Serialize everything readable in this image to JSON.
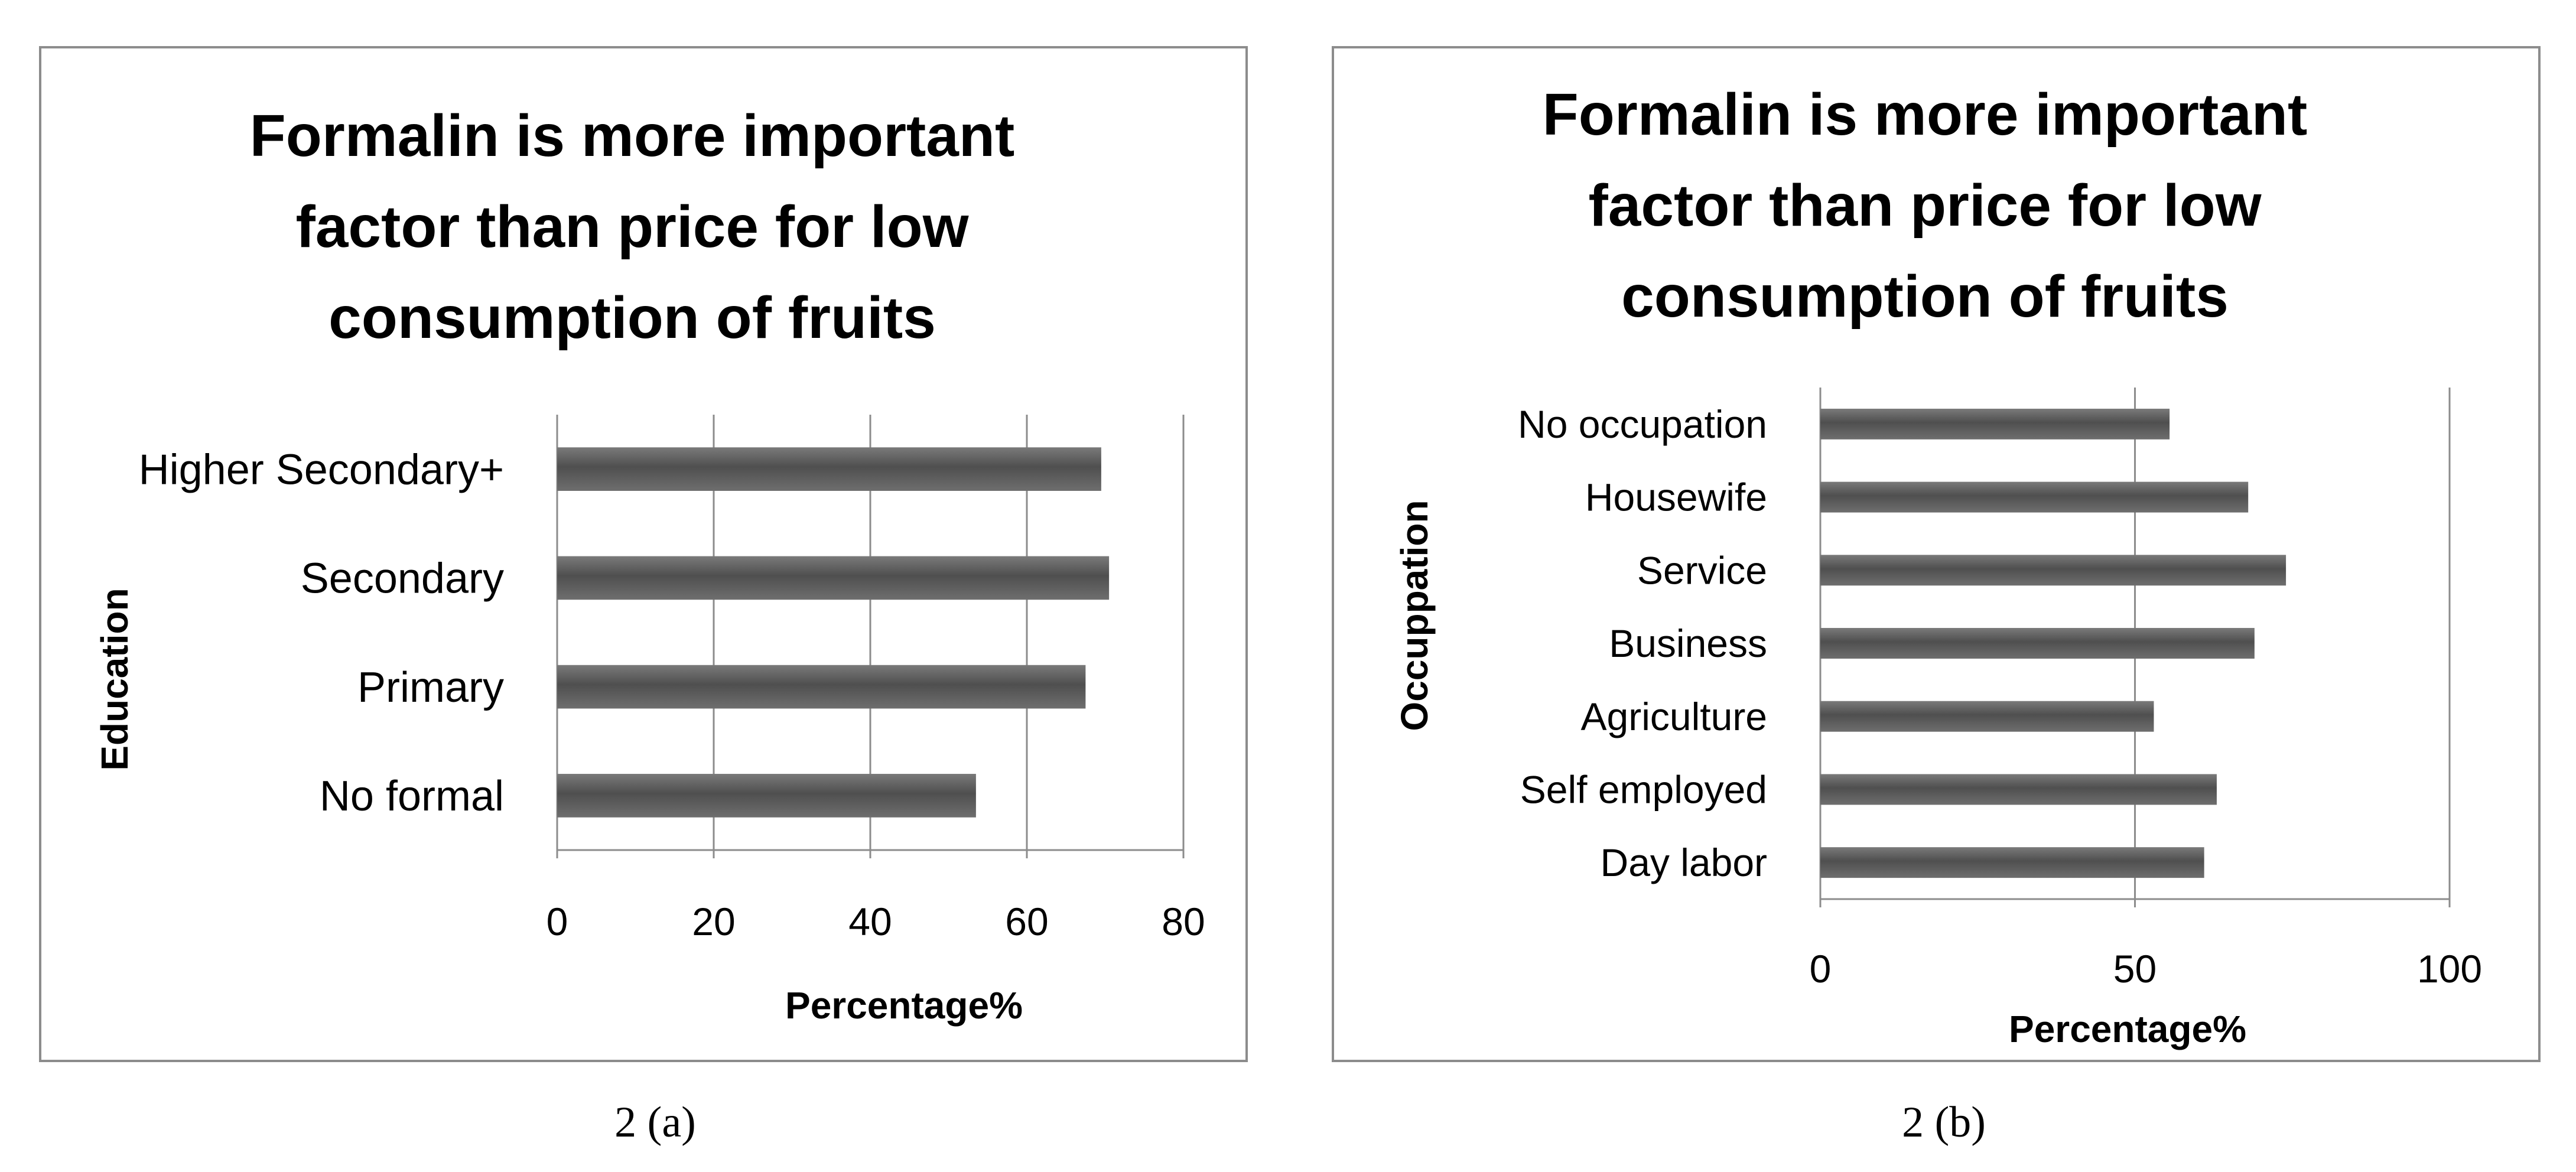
{
  "chart_data": [
    {
      "type": "bar",
      "orientation": "horizontal",
      "title": [
        "Formalin is more important",
        "factor than price for low",
        "consumption of  fruits"
      ],
      "xlabel": "Percentage%",
      "ylabel": "Education",
      "categories": [
        "No formal",
        "Primary",
        "Secondary",
        "Higher Secondary+"
      ],
      "values": [
        53.5,
        67.5,
        70.5,
        69.5
      ],
      "xlim": [
        0,
        80
      ],
      "xticks": [
        0,
        20,
        40,
        60,
        80
      ],
      "xtick_labels": [
        "0",
        "20",
        "40",
        "60",
        "80"
      ],
      "grid": true,
      "bar_color": "#595959",
      "caption": "2 (a)"
    },
    {
      "type": "bar",
      "orientation": "horizontal",
      "title": [
        "Formalin is more important",
        "factor than price for low",
        "consumption of  fruits"
      ],
      "xlabel": "Percentage%",
      "ylabel": "Occuppation",
      "categories": [
        "Day labor",
        "Self employed",
        "Agriculture",
        "Business",
        "Service",
        "Housewife",
        "No occupation"
      ],
      "values": [
        61,
        63,
        53,
        69,
        74,
        68,
        55.5
      ],
      "xlim": [
        0,
        100
      ],
      "xticks": [
        0,
        50,
        100
      ],
      "xtick_labels": [
        "0",
        "50",
        "100"
      ],
      "grid": true,
      "bar_color": "#595959",
      "caption": "2 (b)"
    }
  ]
}
